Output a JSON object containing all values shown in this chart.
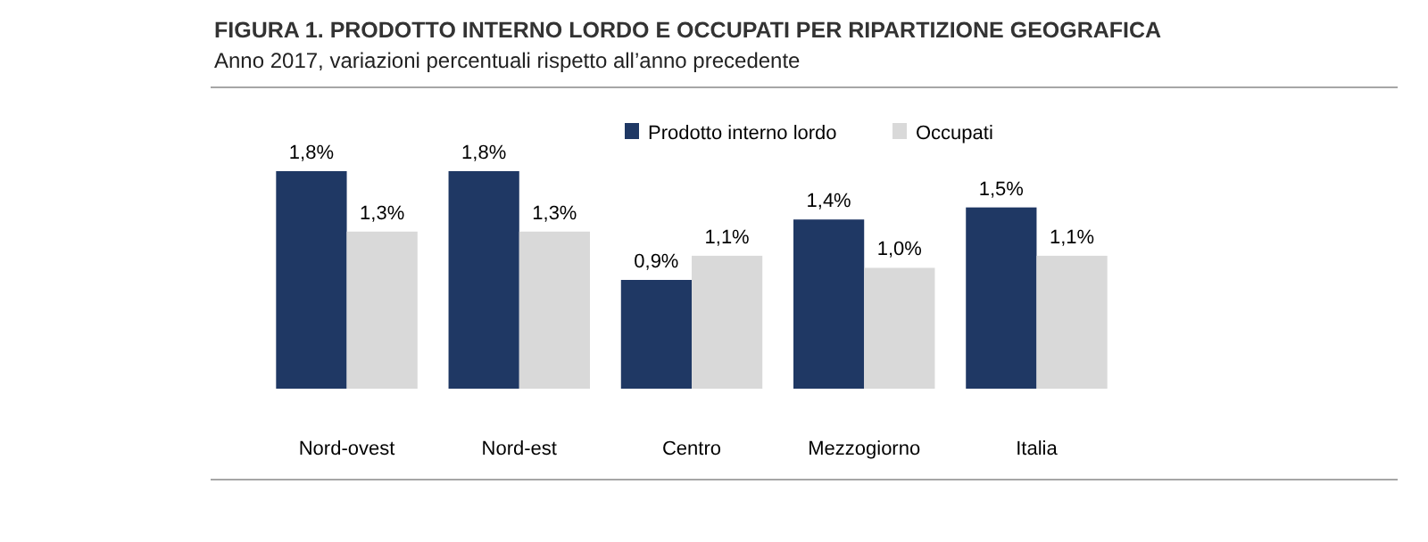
{
  "chart_data": {
    "type": "bar",
    "title": "FIGURA 1. PRODOTTO INTERNO LORDO E OCCUPATI PER RIPARTIZIONE GEOGRAFICA",
    "subtitle": "Anno 2017, variazioni percentuali rispetto all’anno precedente",
    "categories": [
      "Nord-ovest",
      "Nord-est",
      "Centro",
      "Mezzogiorno",
      "Italia"
    ],
    "series": [
      {
        "name": "Prodotto interno lordo",
        "color": "#1f3864",
        "values": [
          1.8,
          1.8,
          0.9,
          1.4,
          1.5
        ],
        "value_labels": [
          "1,8%",
          "1,8%",
          "0,9%",
          "1,4%",
          "1,5%"
        ]
      },
      {
        "name": "Occupati",
        "color": "#d9d9d9",
        "values": [
          1.3,
          1.3,
          1.1,
          1.0,
          1.1
        ],
        "value_labels": [
          "1,3%",
          "1,3%",
          "1,1%",
          "1,0%",
          "1,1%"
        ]
      }
    ],
    "legend": "top right"
  }
}
